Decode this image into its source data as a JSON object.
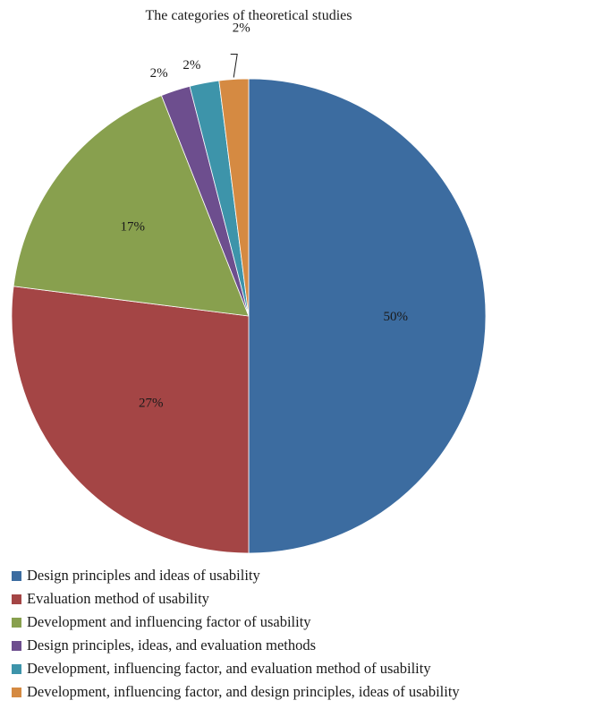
{
  "chart_data": {
    "type": "pie",
    "title": "The categories of theoretical studies",
    "values": [
      50,
      27,
      17,
      2,
      2,
      2
    ],
    "labels": [
      "50%",
      "27%",
      "17%",
      "2%",
      "2%",
      "2%"
    ],
    "categories": [
      "Design principles and ideas of usability",
      "Evaluation method of usability",
      "Development and influencing factor of usability",
      "Design principles, ideas, and evaluation methods",
      "Development, influencing factor, and evaluation method of usability",
      "Development, influencing factor, and design principles, ideas of usability"
    ],
    "colors": [
      "#3c6ca0",
      "#a44545",
      "#88a04e",
      "#6d4e8e",
      "#3d94aa",
      "#d58a42"
    ],
    "start_angle": "12 o'clock",
    "direction": "clockwise",
    "legend_position": "bottom"
  }
}
